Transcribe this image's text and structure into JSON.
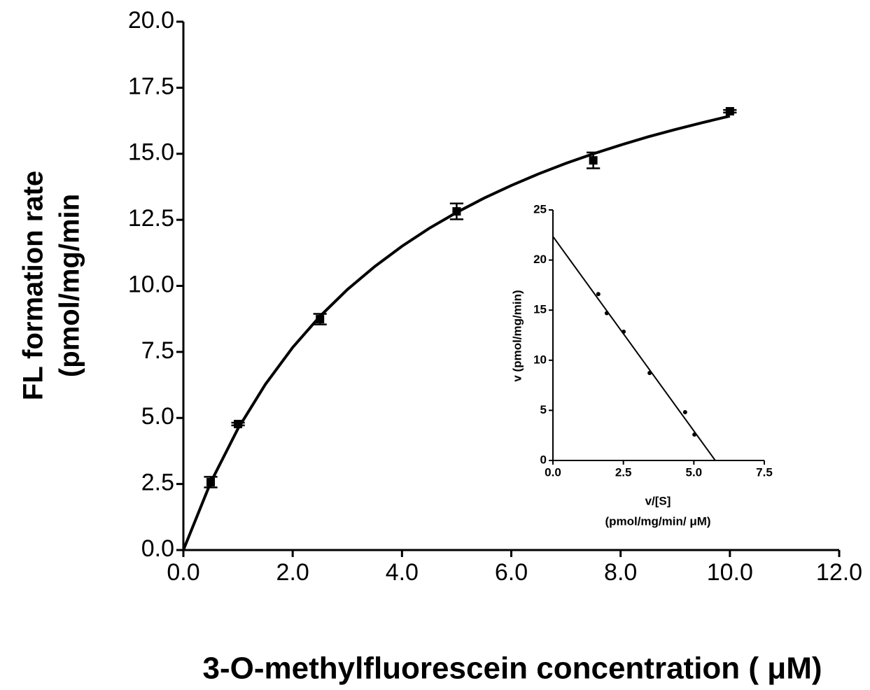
{
  "chart_data": [
    {
      "type": "scatter",
      "x_label": "3-O-methylfluorescein concentration ( μM)",
      "y_label": [
        "FL formation rate",
        "(pmol/mg/min"
      ],
      "xlim": [
        0,
        12
      ],
      "xticks": [
        {
          "value": 0,
          "label": "0.0"
        },
        {
          "value": 2,
          "label": "2.0"
        },
        {
          "value": 4,
          "label": "4.0"
        },
        {
          "value": 6,
          "label": "6.0"
        },
        {
          "value": 8,
          "label": "8.0"
        },
        {
          "value": 10,
          "label": "10.0"
        },
        {
          "value": 12,
          "label": "12.0"
        }
      ],
      "ylim": [
        0,
        20
      ],
      "yticks": [
        {
          "value": 0,
          "label": "0.0"
        },
        2.5,
        {
          "value": 5,
          "label": "5.0"
        },
        7.5,
        {
          "value": 10,
          "label": "10.0"
        },
        12.5,
        {
          "value": 15,
          "label": "15.0"
        },
        17.5,
        {
          "value": 20,
          "label": "20.0"
        }
      ],
      "grid": false,
      "series": [
        {
          "type": "scatter",
          "color": "#000000",
          "x": [
            0.5,
            1,
            2.5,
            5,
            7.5,
            10
          ],
          "values": [
            2.57,
            4.77,
            8.74,
            12.82,
            14.75,
            16.61
          ],
          "errors": [
            0.2,
            0.05,
            0.2,
            0.3,
            0.3,
            0.05
          ]
        },
        {
          "type": "line",
          "color": "#000000",
          "x": [
            0,
            0.5,
            1,
            1.5,
            2,
            2.5,
            3,
            3.5,
            4,
            4.5,
            5,
            5.5,
            6,
            6.5,
            7,
            7.5,
            8,
            8.5,
            9,
            9.5,
            10
          ],
          "values": [
            0,
            2.56,
            4.6,
            6.27,
            7.67,
            8.85,
            9.86,
            10.73,
            11.5,
            12.18,
            12.78,
            13.32,
            13.8,
            14.24,
            14.64,
            15.0,
            15.33,
            15.64,
            15.92,
            16.18,
            16.43
          ]
        }
      ]
    },
    {
      "type": "scatter",
      "x_label": [
        "v/[S]",
        "(pmol/mg/min/ μM)"
      ],
      "y_label": [
        "v (pmol/mg/min)"
      ],
      "xlim": [
        0,
        7.5
      ],
      "xticks": [
        {
          "value": 0,
          "label": "0.0"
        },
        2.5,
        {
          "value": 5,
          "label": "5.0"
        },
        7.5
      ],
      "ylim": [
        0,
        25
      ],
      "yticks": [
        0,
        5,
        10,
        15,
        20,
        25
      ],
      "grid": false,
      "series": [
        {
          "type": "scatter",
          "color": "#000000",
          "x": [
            1.61,
            1.91,
            2.51,
            3.43,
            4.69,
            5.02
          ],
          "values": [
            16.6,
            14.7,
            12.85,
            8.73,
            4.82,
            2.58
          ]
        },
        {
          "type": "line",
          "color": "#000000",
          "x": [
            0,
            5.76
          ],
          "values": [
            22.35,
            0
          ]
        }
      ]
    }
  ]
}
